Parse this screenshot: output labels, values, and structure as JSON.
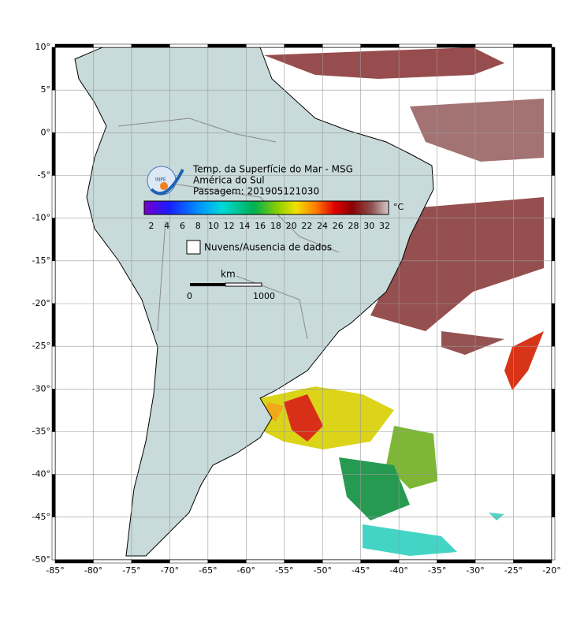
{
  "map": {
    "title_lines": [
      "Temp. da Superfície do Mar - MSG",
      "América do Sul",
      "Passagem: 201905121030"
    ],
    "logo_text": "INPE",
    "colorbar": {
      "unit": "°C",
      "labels": [
        "2",
        "4",
        "6",
        "8",
        "10",
        "12",
        "14",
        "16",
        "18",
        "20",
        "22",
        "24",
        "26",
        "28",
        "30",
        "32"
      ]
    },
    "legend": {
      "clouds": "Nuvens/Ausencia de dados"
    },
    "scale_bar": {
      "unit": "km",
      "start": "0",
      "end": "1000"
    },
    "lat_labels": [
      "10°",
      "5°",
      "0°",
      "-5°",
      "-10°",
      "-15°",
      "-20°",
      "-25°",
      "-30°",
      "-35°",
      "-40°",
      "-45°",
      "-50°"
    ],
    "lon_labels": [
      "-85°",
      "-80°",
      "-75°",
      "-70°",
      "-65°",
      "-60°",
      "-55°",
      "-50°",
      "-45°",
      "-40°",
      "-35°",
      "-30°",
      "-25°",
      "-20°"
    ]
  }
}
